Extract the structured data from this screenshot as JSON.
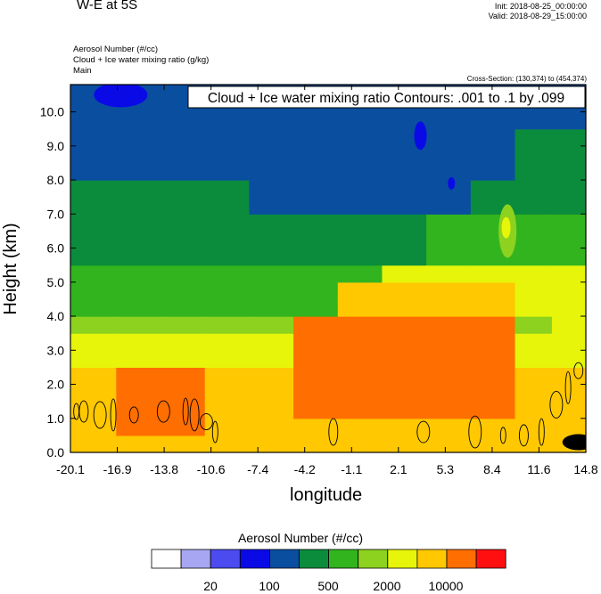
{
  "header": {
    "title": "W-E at 5S",
    "init": "Init: 2018-08-25_00:00:00",
    "valid": "Valid: 2018-08-29_15:00:00",
    "field_lines": [
      "Aerosol Number   (#/cc)",
      "Cloud + Ice water mixing ratio   (g/kg)",
      "Main"
    ],
    "cross_section": "Cross-Section: (130,374) to (454,374)"
  },
  "chart_data": {
    "type": "heatmap",
    "title": "Cloud + Ice water mixing ratio Contours: .001 to .1 by .099",
    "xlabel": "longitude",
    "ylabel": "Height (km)",
    "xlim": [
      -20.1,
      14.8
    ],
    "ylim": [
      0.0,
      10.8
    ],
    "x_tick_labels": [
      "-20.1",
      "-16.9",
      "-13.8",
      "-10.6",
      "-7.4",
      "-4.2",
      "-1.1",
      "2.1",
      "5.3",
      "8.4",
      "11.6",
      "14.8"
    ],
    "y_tick_values": [
      0.0,
      1.0,
      2.0,
      3.0,
      4.0,
      5.0,
      6.0,
      7.0,
      8.0,
      9.0,
      10.0
    ],
    "y_tick_labels": [
      "0.0",
      "1.0",
      "2.0",
      "3.0",
      "4.0",
      "5.0",
      "6.0",
      "7.0",
      "8.0",
      "9.0",
      "10.0"
    ],
    "field_x": [
      -20.1,
      -17,
      -14,
      -11,
      -8,
      -5,
      -2,
      1,
      4,
      7,
      10,
      12.5,
      14.8
    ],
    "field_y": [
      0.0,
      0.5,
      1.0,
      1.5,
      2.0,
      2.5,
      3.0,
      3.5,
      4.0,
      4.5,
      5.0,
      5.5,
      6.0,
      6.5,
      7.0,
      7.5,
      8.0,
      8.5,
      9.0,
      9.5,
      10.0,
      10.5,
      10.8
    ],
    "colorbar": {
      "title": "Aerosol Number  (#/cc)",
      "colors": [
        "#ffffff",
        "#a6a6f2",
        "#4b4bf0",
        "#0a0ae6",
        "#0a4ea0",
        "#0a8c3c",
        "#32b41e",
        "#8cd21e",
        "#e6f50a",
        "#ffc800",
        "#ff6e00",
        "#ff0f0f"
      ],
      "labels": [
        "20",
        "100",
        "500",
        "2000",
        "10000"
      ]
    }
  }
}
